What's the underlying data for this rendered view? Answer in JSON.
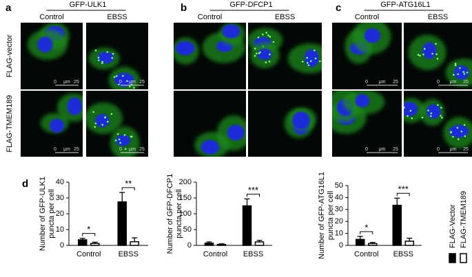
{
  "figure": {
    "panels": [
      {
        "label": "a",
        "title": "GFP-ULK1",
        "columns": [
          "Control",
          "EBSS"
        ]
      },
      {
        "label": "b",
        "title": "GFP-DFCP1",
        "columns": [
          "Control",
          "EBSS"
        ]
      },
      {
        "label": "c",
        "title": "GFP-ATG16L1",
        "columns": [
          "Control",
          "EBSS"
        ]
      }
    ],
    "rows": [
      "FLAG-vector",
      "FLAG-TMEM189"
    ],
    "scale_bar": {
      "start": "0",
      "unit": "μm",
      "end": "25"
    },
    "chart_label": "d"
  },
  "chart_data": [
    {
      "type": "bar",
      "ylabel": [
        "Number of GFP-ULK1",
        "puncta per cell"
      ],
      "categories": [
        "Control",
        "EBSS"
      ],
      "ylim": [
        0,
        40
      ],
      "yticks": [
        0,
        10,
        20,
        30,
        40
      ],
      "series": [
        {
          "name": "FLAG-Vector",
          "color": "#000000",
          "values": [
            3.5,
            27.5
          ],
          "errors": [
            1,
            6
          ]
        },
        {
          "name": "FLAG-TMEM189",
          "color": "#ffffff",
          "values": [
            1.2,
            2.3
          ],
          "errors": [
            0.8,
            2.5
          ]
        }
      ],
      "significance": [
        "*",
        "**"
      ]
    },
    {
      "type": "bar",
      "ylabel": [
        "Number of GFP-DFCP1",
        "puncta per cell"
      ],
      "categories": [
        "Control",
        "EBSS"
      ],
      "ylim": [
        0,
        200
      ],
      "yticks": [
        0,
        50,
        100,
        150,
        200
      ],
      "series": [
        {
          "name": "FLAG-Vector",
          "color": "#000000",
          "values": [
            7,
            125
          ],
          "errors": [
            4,
            22
          ]
        },
        {
          "name": "FLAG-TMEM189",
          "color": "#ffffff",
          "values": [
            3,
            11
          ],
          "errors": [
            2,
            5
          ]
        }
      ],
      "significance": [
        null,
        "***"
      ]
    },
    {
      "type": "bar",
      "ylabel": [
        "Number of GFP-ATG16L1",
        "puncta per cell"
      ],
      "categories": [
        "Control",
        "EBSS"
      ],
      "ylim": [
        0,
        50
      ],
      "yticks": [
        0,
        10,
        20,
        30,
        40,
        50
      ],
      "series": [
        {
          "name": "FLAG-Vector",
          "color": "#000000",
          "values": [
            5,
            33.5
          ],
          "errors": [
            2.5,
            6
          ]
        },
        {
          "name": "FLAG-TMEM189",
          "color": "#ffffff",
          "values": [
            1.5,
            3.5
          ],
          "errors": [
            1,
            2.5
          ]
        }
      ],
      "significance": [
        "*",
        "***"
      ],
      "legend": "right"
    }
  ]
}
